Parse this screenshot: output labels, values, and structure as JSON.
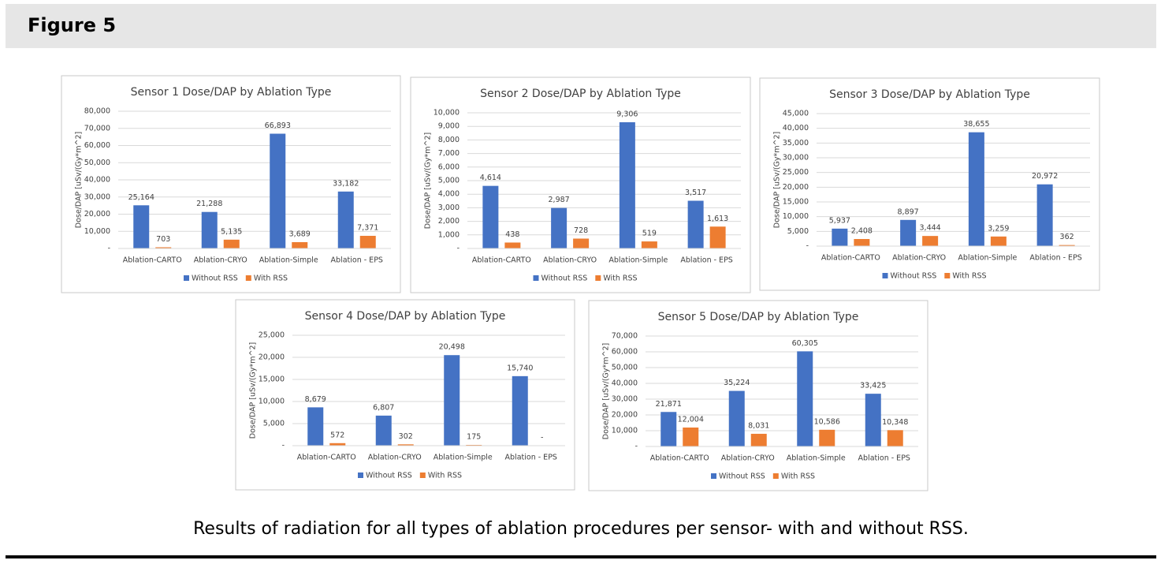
{
  "header": {
    "title": "Figure 5"
  },
  "caption": "Results of radiation for all types of ablation procedures per sensor- with and without RSS.",
  "chart_data": [
    {
      "type": "bar",
      "title": "Sensor 1 Dose/DAP by Ablation Type",
      "y_label": "Dose/DAP [uSv/(Gy*m^2]",
      "categories": [
        "Ablation-CARTO",
        "Ablation-CRYO",
        "Ablation-Simple",
        "Ablation - EPS"
      ],
      "series": [
        {
          "name": "Without RSS",
          "color": "#4472c4",
          "values": [
            25164,
            21288,
            66893,
            33182
          ],
          "value_labels": [
            "25,164",
            "21,288",
            "66,893",
            "33,182"
          ]
        },
        {
          "name": "With RSS",
          "color": "#ed7d31",
          "values": [
            703,
            5135,
            3689,
            7371
          ],
          "value_labels": [
            "703",
            "5,135",
            "3,689",
            "7,371"
          ]
        }
      ],
      "ylim": [
        0,
        80000
      ],
      "yticks": [
        {
          "value": 0,
          "label": "-"
        },
        {
          "value": 10000,
          "label": "10,000"
        },
        {
          "value": 20000,
          "label": "20,000"
        },
        {
          "value": 30000,
          "label": "30,000"
        },
        {
          "value": 40000,
          "label": "40,000"
        },
        {
          "value": 50000,
          "label": "50,000"
        },
        {
          "value": 60000,
          "label": "60,000"
        },
        {
          "value": 70000,
          "label": "70,000"
        },
        {
          "value": 80000,
          "label": "80,000"
        }
      ],
      "grid": true,
      "legend": "bottom"
    },
    {
      "type": "bar",
      "title": "Sensor 2 Dose/DAP by Ablation Type",
      "y_label": "Dose/DAP [uSv/(Gy*m^2]",
      "categories": [
        "Ablation-CARTO",
        "Ablation-CRYO",
        "Ablation-Simple",
        "Ablation - EPS"
      ],
      "series": [
        {
          "name": "Without RSS",
          "color": "#4472c4",
          "values": [
            4614,
            2987,
            9306,
            3517
          ],
          "value_labels": [
            "4,614",
            "2,987",
            "9,306",
            "3,517"
          ]
        },
        {
          "name": "With RSS",
          "color": "#ed7d31",
          "values": [
            438,
            728,
            519,
            1613
          ],
          "value_labels": [
            "438",
            "728",
            "519",
            "1,613"
          ]
        }
      ],
      "ylim": [
        0,
        10000
      ],
      "yticks": [
        {
          "value": 0,
          "label": "-"
        },
        {
          "value": 1000,
          "label": "1,000"
        },
        {
          "value": 2000,
          "label": "2,000"
        },
        {
          "value": 3000,
          "label": "3,000"
        },
        {
          "value": 4000,
          "label": "4,000"
        },
        {
          "value": 5000,
          "label": "5,000"
        },
        {
          "value": 6000,
          "label": "6,000"
        },
        {
          "value": 7000,
          "label": "7,000"
        },
        {
          "value": 8000,
          "label": "8,000"
        },
        {
          "value": 9000,
          "label": "9,000"
        },
        {
          "value": 10000,
          "label": "10,000"
        }
      ],
      "grid": true,
      "legend": "bottom"
    },
    {
      "type": "bar",
      "title": "Sensor 3 Dose/DAP by Ablation Type",
      "y_label": "Dose/DAP [uSv/(Gy*m^2]",
      "categories": [
        "Ablation-CARTO",
        "Ablation-CRYO",
        "Ablation-Simple",
        "Ablation - EPS"
      ],
      "series": [
        {
          "name": "Without RSS",
          "color": "#4472c4",
          "values": [
            5937,
            8897,
            38655,
            20972
          ],
          "value_labels": [
            "5,937",
            "8,897",
            "38,655",
            "20,972"
          ]
        },
        {
          "name": "With RSS",
          "color": "#ed7d31",
          "values": [
            2408,
            3444,
            3259,
            362
          ],
          "value_labels": [
            "2,408",
            "3,444",
            "3,259",
            "362"
          ]
        }
      ],
      "ylim": [
        0,
        45000
      ],
      "yticks": [
        {
          "value": 0,
          "label": "-"
        },
        {
          "value": 5000,
          "label": "5,000"
        },
        {
          "value": 10000,
          "label": "10,000"
        },
        {
          "value": 15000,
          "label": "15,000"
        },
        {
          "value": 20000,
          "label": "20,000"
        },
        {
          "value": 25000,
          "label": "25,000"
        },
        {
          "value": 30000,
          "label": "30,000"
        },
        {
          "value": 35000,
          "label": "35,000"
        },
        {
          "value": 40000,
          "label": "40,000"
        },
        {
          "value": 45000,
          "label": "45,000"
        }
      ],
      "grid": true,
      "legend": "bottom"
    },
    {
      "type": "bar",
      "title": "Sensor 4 Dose/DAP by Ablation Type",
      "y_label": "Dose/DAP [uSv/(Gy*m^2]",
      "categories": [
        "Ablation-CARTO",
        "Ablation-CRYO",
        "Ablation-Simple",
        "Ablation - EPS"
      ],
      "series": [
        {
          "name": "Without RSS",
          "color": "#4472c4",
          "values": [
            8679,
            6807,
            20498,
            15740
          ],
          "value_labels": [
            "8,679",
            "6,807",
            "20,498",
            "15,740"
          ]
        },
        {
          "name": "With RSS",
          "color": "#ed7d31",
          "values": [
            572,
            302,
            175,
            0
          ],
          "value_labels": [
            "572",
            "302",
            "175",
            "-"
          ]
        }
      ],
      "ylim": [
        0,
        25000
      ],
      "yticks": [
        {
          "value": 0,
          "label": "-"
        },
        {
          "value": 5000,
          "label": "5,000"
        },
        {
          "value": 10000,
          "label": "10,000"
        },
        {
          "value": 15000,
          "label": "15,000"
        },
        {
          "value": 20000,
          "label": "20,000"
        },
        {
          "value": 25000,
          "label": "25,000"
        }
      ],
      "grid": true,
      "legend": "bottom"
    },
    {
      "type": "bar",
      "title": "Sensor 5 Dose/DAP by Ablation Type",
      "y_label": "Dose/DAP [uSv/(Gy*m^2]",
      "categories": [
        "Ablation-CARTO",
        "Ablation-CRYO",
        "Ablation-Simple",
        "Ablation - EPS"
      ],
      "series": [
        {
          "name": "Without RSS",
          "color": "#4472c4",
          "values": [
            21871,
            35224,
            60305,
            33425
          ],
          "value_labels": [
            "21,871",
            "35,224",
            "60,305",
            "33,425"
          ]
        },
        {
          "name": "With RSS",
          "color": "#ed7d31",
          "values": [
            12004,
            8031,
            10586,
            10348
          ],
          "value_labels": [
            "12,004",
            "8,031",
            "10,586",
            "10,348"
          ]
        }
      ],
      "ylim": [
        0,
        70000
      ],
      "yticks": [
        {
          "value": 0,
          "label": "-"
        },
        {
          "value": 10000,
          "label": "10,000"
        },
        {
          "value": 20000,
          "label": "20,000"
        },
        {
          "value": 30000,
          "label": "30,000"
        },
        {
          "value": 40000,
          "label": "40,000"
        },
        {
          "value": 50000,
          "label": "50,000"
        },
        {
          "value": 60000,
          "label": "60,000"
        },
        {
          "value": 70000,
          "label": "70,000"
        }
      ],
      "grid": true,
      "legend": "bottom"
    }
  ]
}
